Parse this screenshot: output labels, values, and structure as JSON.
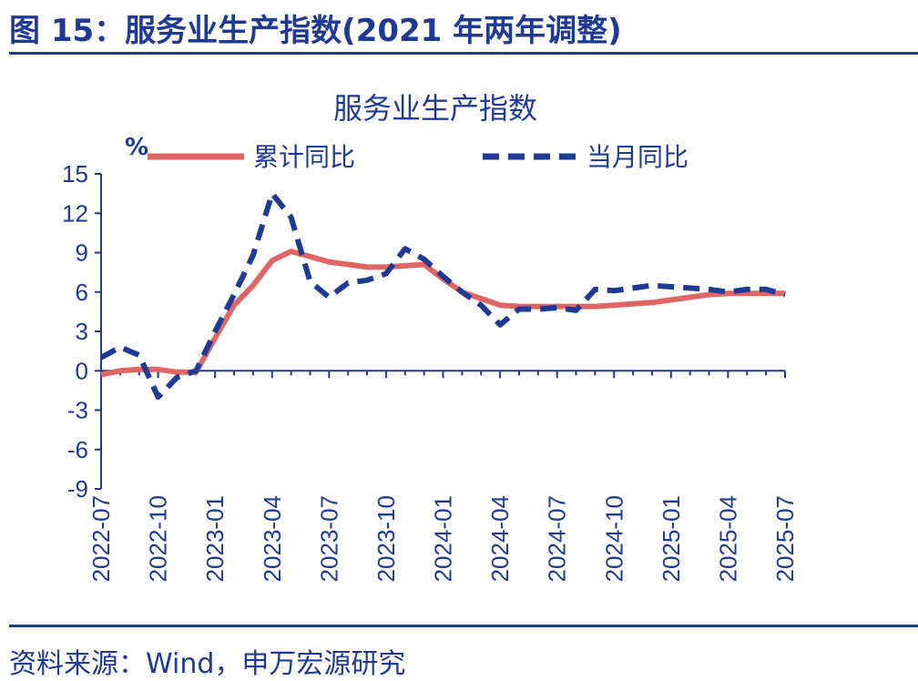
{
  "header": {
    "figure_title": "图 15：服务业生产指数(2021 年两年调整)"
  },
  "footer": {
    "source": "资料来源：Wind，申万宏源研究"
  },
  "colors": {
    "accent": "#1f3a93",
    "cumulative": "#e06666",
    "monthly": "#1f3a93"
  },
  "chart_data": {
    "type": "line",
    "title": "服务业生产指数",
    "ylabel": "%",
    "xlabel": "",
    "ylim": [
      -9,
      15
    ],
    "yticks": [
      15,
      12,
      9,
      6,
      3,
      0,
      -3,
      -6,
      -9
    ],
    "ytick_labels": [
      "15",
      "12",
      "9",
      "6",
      "3",
      "0",
      "-3",
      "-6",
      "-9"
    ],
    "legend_position": "top",
    "x_tick_labels": [
      "2022-07",
      "2022-10",
      "2023-01",
      "2023-04",
      "2023-07",
      "2023-10",
      "2024-01",
      "2024-04",
      "2024-07",
      "2024-10",
      "2025-01",
      "2025-04",
      "2025-07"
    ],
    "x": [
      "2022-07",
      "2022-08",
      "2022-09",
      "2022-10",
      "2022-11",
      "2022-12",
      "2023-01",
      "2023-02",
      "2023-03",
      "2023-04",
      "2023-05",
      "2023-06",
      "2023-07",
      "2023-08",
      "2023-09",
      "2023-10",
      "2023-11",
      "2023-12",
      "2024-01",
      "2024-02",
      "2024-03",
      "2024-04",
      "2024-05",
      "2024-06",
      "2024-07",
      "2024-08",
      "2024-09",
      "2024-10",
      "2024-11",
      "2024-12",
      "2025-01",
      "2025-02",
      "2025-03",
      "2025-04",
      "2025-05",
      "2025-06",
      "2025-07"
    ],
    "series": [
      {
        "name": "累计同比",
        "style": "solid",
        "values": [
          -0.3,
          0.0,
          0.1,
          0.1,
          -0.1,
          -0.1,
          2.5,
          5.0,
          6.5,
          8.4,
          9.1,
          8.7,
          8.3,
          8.1,
          7.9,
          7.9,
          8.0,
          8.1,
          7.0,
          6.0,
          5.5,
          5.0,
          4.9,
          4.9,
          4.9,
          4.9,
          4.9,
          5.0,
          5.1,
          5.2,
          5.4,
          5.6,
          5.8,
          5.9,
          5.9,
          5.9,
          5.9
        ]
      },
      {
        "name": "当月同比",
        "style": "dashed",
        "values": [
          1.0,
          1.8,
          1.2,
          -2.0,
          -0.5,
          0.0,
          3.0,
          5.8,
          8.8,
          13.5,
          11.7,
          6.8,
          5.6,
          6.7,
          6.9,
          7.4,
          9.3,
          8.5,
          7.2,
          6.0,
          5.0,
          3.5,
          4.7,
          4.7,
          4.8,
          4.6,
          6.2,
          6.1,
          6.3,
          6.5,
          6.4,
          6.3,
          6.2,
          6.0,
          6.2,
          6.2,
          5.8
        ]
      }
    ]
  }
}
